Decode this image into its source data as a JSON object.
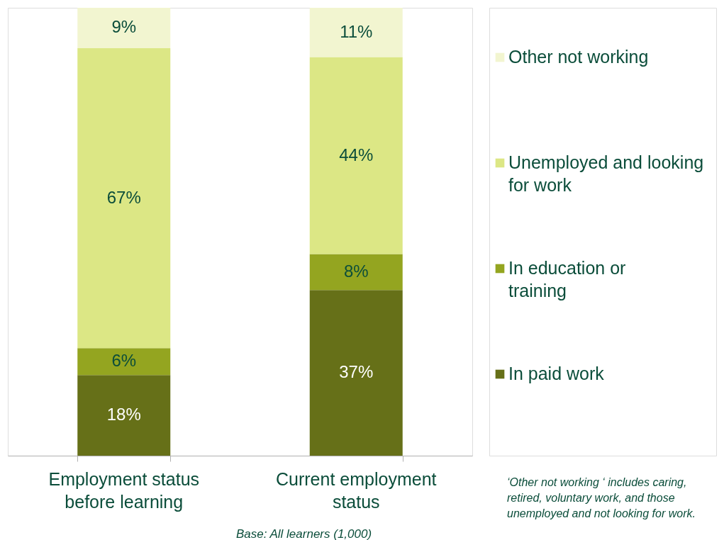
{
  "chart_data": {
    "type": "bar",
    "stacked": true,
    "tick_labels": "x",
    "legend": "right",
    "grid": false,
    "categories": [
      "Employment status before learning",
      "Current employment status"
    ],
    "series": [
      {
        "name": "In paid work",
        "color": "#667018",
        "values": [
          18,
          37
        ],
        "value_labels": [
          "18%",
          "37%"
        ]
      },
      {
        "name": "In education or training",
        "color": "#94a520",
        "values": [
          6,
          8
        ],
        "value_labels": [
          "6%",
          "8%"
        ]
      },
      {
        "name": "Unemployed and looking for work",
        "color": "#dce785",
        "values": [
          67,
          44
        ],
        "value_labels": [
          "67%",
          "44%"
        ]
      },
      {
        "name": "Other not working",
        "color": "#f2f5d0",
        "values": [
          9,
          11
        ],
        "value_labels": [
          "9%",
          "11%"
        ]
      }
    ],
    "annotations": [
      "Base:  All learners  (1,000)",
      "‘Other not working ‘ includes caring, retired, voluntary work, and  those unemployed and not looking for work."
    ]
  }
}
